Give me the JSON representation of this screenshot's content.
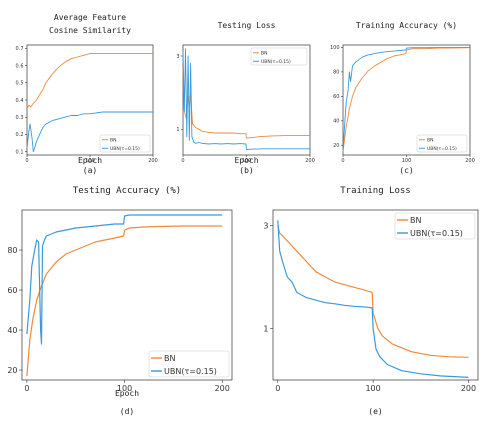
{
  "colors": {
    "bn": "#f08a3c",
    "ubn": "#3a9ad9"
  },
  "chart_data": [
    {
      "type": "line",
      "title": "Average Feature Cosine Similarity",
      "xlabel": "Epoch",
      "panel_label": "(a)",
      "xlim": [
        0,
        200
      ],
      "ylim": [
        0.08,
        0.72
      ],
      "xticks": [
        0,
        100,
        200
      ],
      "xtick_labels": [
        "0",
        "100",
        "200"
      ],
      "yticks": [
        0.1,
        0.2,
        0.3,
        0.4,
        0.5,
        0.6,
        0.7
      ],
      "ytick_labels": [
        "0.1",
        "0.2",
        "0.3",
        "0.4",
        "0.5",
        "0.6",
        "0.7"
      ],
      "legend_position": "lower-right",
      "series": [
        {
          "name": "BN",
          "color": "bn",
          "x": [
            0,
            3,
            6,
            10,
            15,
            20,
            25,
            30,
            40,
            50,
            60,
            70,
            80,
            90,
            100,
            120,
            140,
            160,
            180,
            200
          ],
          "y": [
            0.35,
            0.37,
            0.36,
            0.38,
            0.4,
            0.43,
            0.46,
            0.5,
            0.55,
            0.59,
            0.62,
            0.64,
            0.65,
            0.66,
            0.67,
            0.67,
            0.67,
            0.67,
            0.67,
            0.67
          ]
        },
        {
          "name": "UBN(τ=0.15)",
          "color": "ubn",
          "x": [
            0,
            3,
            5,
            8,
            10,
            12,
            15,
            20,
            25,
            30,
            40,
            50,
            60,
            70,
            80,
            90,
            100,
            120,
            140,
            160,
            180,
            200
          ],
          "y": [
            0.12,
            0.22,
            0.26,
            0.18,
            0.1,
            0.12,
            0.16,
            0.2,
            0.24,
            0.26,
            0.28,
            0.29,
            0.3,
            0.31,
            0.31,
            0.32,
            0.32,
            0.33,
            0.33,
            0.33,
            0.33,
            0.33
          ]
        }
      ]
    },
    {
      "type": "line",
      "title": "Testing Loss",
      "xlabel": "Epoch",
      "panel_label": "(b)",
      "xlim": [
        0,
        200
      ],
      "ylim": [
        0.3,
        3.3
      ],
      "xticks": [
        0,
        100,
        200
      ],
      "xtick_labels": [
        "0",
        "100",
        "200"
      ],
      "yticks": [
        1,
        3
      ],
      "ytick_labels": [
        "1",
        "3"
      ],
      "legend_position": "top-right",
      "series": [
        {
          "name": "BN",
          "color": "bn",
          "x": [
            0,
            2,
            5,
            8,
            10,
            12,
            15,
            20,
            30,
            40,
            50,
            60,
            70,
            80,
            90,
            99,
            100,
            105,
            120,
            140,
            160,
            180,
            200
          ],
          "y": [
            2.7,
            1.5,
            1.3,
            1.9,
            1.6,
            2.0,
            1.15,
            1.05,
            0.95,
            0.92,
            0.9,
            0.9,
            0.9,
            0.9,
            0.88,
            0.88,
            0.76,
            0.77,
            0.8,
            0.82,
            0.83,
            0.83,
            0.83
          ]
        },
        {
          "name": "UBN(τ=0.15)",
          "color": "ubn",
          "x": [
            0,
            2,
            4,
            6,
            8,
            10,
            12,
            14,
            17,
            20,
            25,
            30,
            40,
            50,
            60,
            70,
            80,
            90,
            99,
            100,
            110,
            130,
            150,
            170,
            200
          ],
          "y": [
            3.1,
            1.5,
            3.2,
            0.8,
            3.0,
            0.7,
            2.8,
            0.8,
            0.65,
            0.62,
            0.64,
            0.62,
            0.6,
            0.61,
            0.6,
            0.61,
            0.6,
            0.61,
            0.6,
            0.45,
            0.46,
            0.47,
            0.47,
            0.47,
            0.47
          ]
        }
      ]
    },
    {
      "type": "line",
      "title": "Training Accuracy (%)",
      "xlabel": "",
      "panel_label": "(c)",
      "xlim": [
        0,
        200
      ],
      "ylim": [
        12,
        102
      ],
      "xticks": [
        0,
        100,
        200
      ],
      "xtick_labels": [
        "0",
        "100",
        "200"
      ],
      "yticks": [
        20,
        40,
        60,
        80,
        100
      ],
      "ytick_labels": [
        "20",
        "40",
        "60",
        "80",
        "100"
      ],
      "legend_position": "lower-right",
      "series": [
        {
          "name": "BN",
          "color": "bn",
          "x": [
            0,
            5,
            10,
            15,
            20,
            30,
            40,
            50,
            60,
            70,
            80,
            90,
            99,
            100,
            110,
            130,
            150,
            170,
            200
          ],
          "y": [
            15,
            35,
            50,
            60,
            67,
            75,
            81,
            85,
            88,
            91,
            93,
            94,
            95,
            98,
            99,
            99,
            99.5,
            99.5,
            99.8
          ]
        },
        {
          "name": "UBN(τ=0.15)",
          "color": "ubn",
          "x": [
            0,
            3,
            5,
            8,
            10,
            12,
            15,
            20,
            25,
            30,
            40,
            50,
            60,
            70,
            80,
            90,
            99,
            100,
            110,
            130,
            150,
            170,
            200
          ],
          "y": [
            15,
            40,
            55,
            65,
            80,
            72,
            85,
            88,
            90,
            92,
            94,
            95,
            96,
            96.5,
            97,
            97.5,
            98,
            99.5,
            99.8,
            99.8,
            99.9,
            99.9,
            99.9
          ]
        }
      ]
    },
    {
      "type": "line",
      "title": "Testing Accuracy (%)",
      "xlabel": "Epoch",
      "panel_label": "(d)",
      "xlim": [
        -5,
        210
      ],
      "ylim": [
        15,
        100
      ],
      "xticks": [
        0,
        100,
        200
      ],
      "xtick_labels": [
        "0",
        "100",
        "200"
      ],
      "yticks": [
        20,
        40,
        60,
        80
      ],
      "ytick_labels": [
        "20",
        "40",
        "60",
        "80"
      ],
      "legend_position": "lower-right",
      "series": [
        {
          "name": "BN",
          "color": "bn",
          "x": [
            0,
            3,
            6,
            10,
            15,
            20,
            25,
            30,
            40,
            50,
            60,
            70,
            80,
            90,
            99,
            100,
            105,
            120,
            140,
            160,
            180,
            200
          ],
          "y": [
            17,
            35,
            45,
            55,
            62,
            68,
            71,
            74,
            78,
            80,
            82,
            84,
            85,
            86,
            87,
            90,
            91,
            91.5,
            91.8,
            92,
            92,
            92
          ]
        },
        {
          "name": "UBN(τ=0.15)",
          "color": "ubn",
          "x": [
            0,
            3,
            5,
            8,
            10,
            12,
            14,
            15,
            16,
            18,
            20,
            30,
            40,
            50,
            60,
            70,
            80,
            90,
            99,
            100,
            105,
            120,
            140,
            160,
            180,
            200
          ],
          "y": [
            38,
            55,
            72,
            80,
            85,
            84,
            40,
            33,
            82,
            85,
            87,
            89,
            90,
            91,
            91.5,
            92,
            92.5,
            93,
            93,
            97,
            97.5,
            97.5,
            97.5,
            97.5,
            97.5,
            97.5
          ]
        }
      ]
    },
    {
      "type": "line",
      "title": "Training Loss",
      "xlabel": "",
      "panel_label": "(e)",
      "xlim": [
        -5,
        210
      ],
      "ylim": [
        0.0,
        3.3
      ],
      "xticks": [
        0,
        100,
        200
      ],
      "xtick_labels": [
        "0",
        "100",
        "200"
      ],
      "yticks": [
        1,
        3
      ],
      "ytick_labels": [
        "1",
        "3"
      ],
      "legend_position": "top-right",
      "series": [
        {
          "name": "BN",
          "color": "bn",
          "x": [
            0,
            2,
            5,
            10,
            20,
            30,
            40,
            50,
            60,
            70,
            80,
            90,
            99,
            100,
            105,
            110,
            120,
            140,
            160,
            180,
            200
          ],
          "y": [
            3.0,
            2.85,
            2.8,
            2.7,
            2.5,
            2.3,
            2.1,
            2.0,
            1.9,
            1.85,
            1.8,
            1.75,
            1.7,
            1.3,
            1.0,
            0.85,
            0.7,
            0.55,
            0.48,
            0.45,
            0.44
          ]
        },
        {
          "name": "UBN(τ=0.15)",
          "color": "ubn",
          "x": [
            0,
            2,
            5,
            10,
            15,
            20,
            25,
            30,
            40,
            50,
            60,
            70,
            80,
            90,
            99,
            100,
            103,
            107,
            115,
            130,
            150,
            170,
            200
          ],
          "y": [
            3.1,
            2.5,
            2.3,
            2.0,
            1.9,
            1.7,
            1.65,
            1.6,
            1.55,
            1.5,
            1.48,
            1.45,
            1.43,
            1.42,
            1.4,
            1.0,
            0.6,
            0.45,
            0.3,
            0.18,
            0.12,
            0.08,
            0.05
          ]
        }
      ]
    }
  ]
}
